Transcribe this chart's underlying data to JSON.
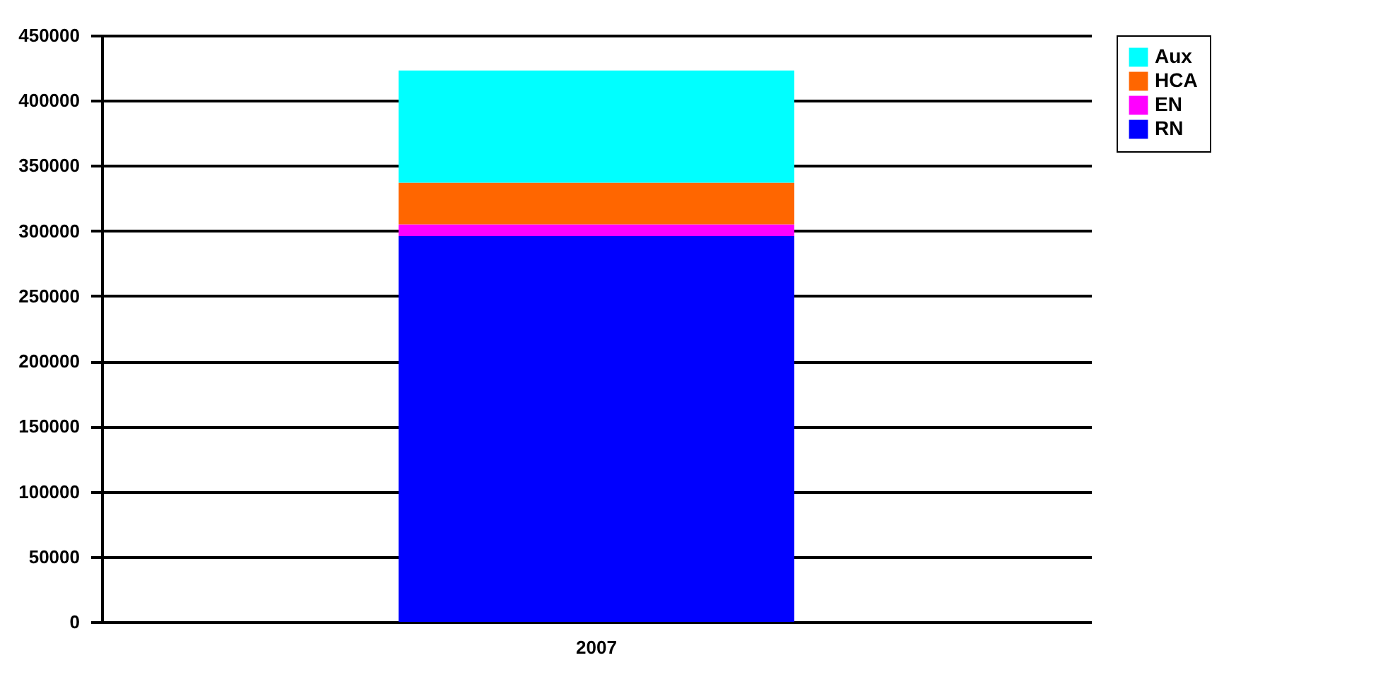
{
  "chart_data": {
    "type": "bar",
    "stacked": true,
    "categories": [
      "2007"
    ],
    "series": [
      {
        "name": "RN",
        "color": "#0000ff",
        "values": [
          296000
        ]
      },
      {
        "name": "EN",
        "color": "#ff00ff",
        "values": [
          9000
        ]
      },
      {
        "name": "HCA",
        "color": "#ff6600",
        "values": [
          32000
        ]
      },
      {
        "name": "Aux",
        "color": "#00ffff",
        "values": [
          86000
        ]
      }
    ],
    "ylim": [
      0,
      450000
    ],
    "yticks": [
      0,
      50000,
      100000,
      150000,
      200000,
      250000,
      300000,
      350000,
      400000,
      450000
    ],
    "grid": "y",
    "legend": "right"
  }
}
